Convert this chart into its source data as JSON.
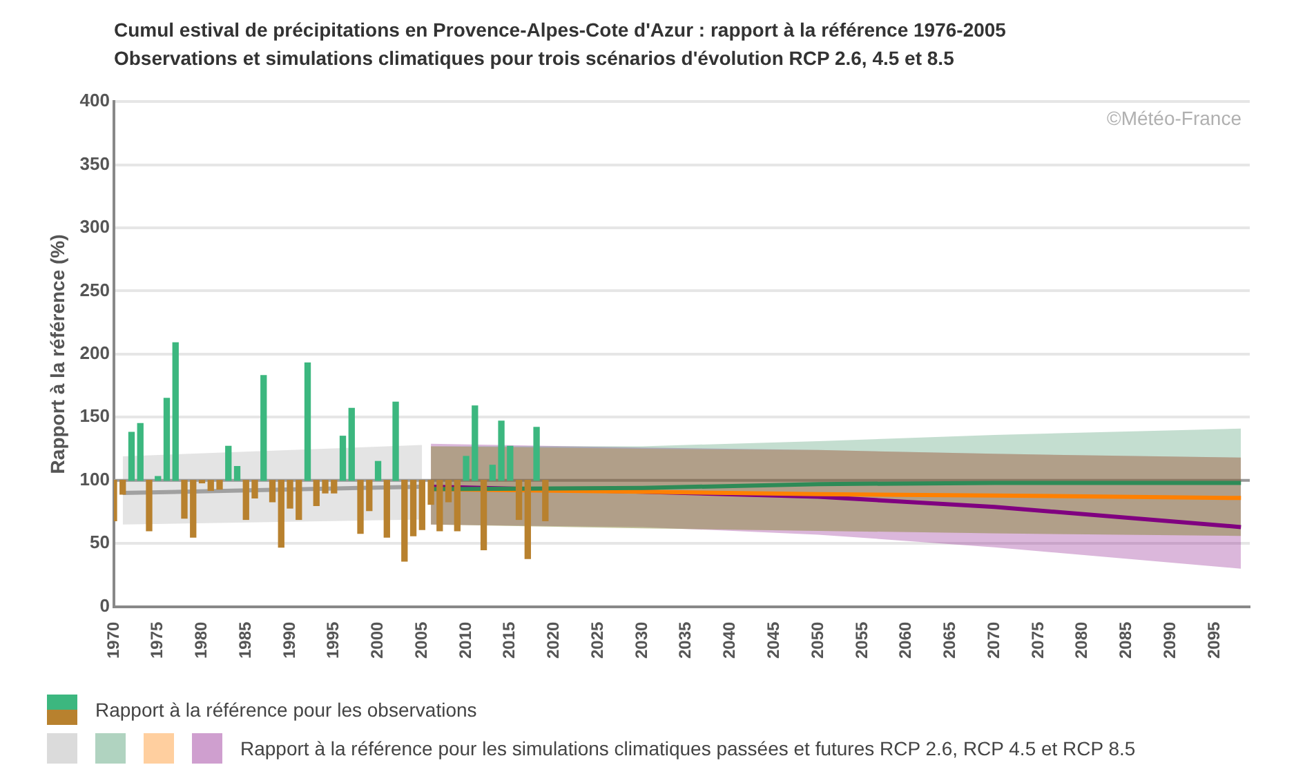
{
  "chart_data": {
    "type": "bar",
    "title": "Cumul estival de précipitations en Provence-Alpes-Cote d'Azur : rapport à la référence 1976-2005",
    "subtitle": "Observations et simulations climatiques pour trois scénarios d'évolution RCP 2.6, 4.5 et 8.5",
    "ylabel": "Rapport à la référence (%)",
    "annotations": [
      "©Météo-France",
      "Rapport à la référence  pour les simulations  climatiques passées et futures RCP 2.6, RCP 4.5 et RCP 8.5"
    ],
    "series": [
      {
        "name": "Rapport à la référence pour les observations",
        "x": [
          1970,
          1971,
          1972,
          1973,
          1974,
          1975,
          1976,
          1977,
          1978,
          1979,
          1980,
          1981,
          1982,
          1983,
          1984,
          1985,
          1986,
          1987,
          1988,
          1989,
          1990,
          1991,
          1992,
          1993,
          1994,
          1995,
          1996,
          1997,
          1998,
          1999,
          2000,
          2001,
          2002,
          2003,
          2004,
          2005,
          2006,
          2007,
          2008,
          2009,
          2010,
          2011,
          2012,
          2013,
          2014,
          2015,
          2016,
          2017,
          2018,
          2019
        ],
        "base": [
          100,
          100,
          100,
          100,
          100,
          100,
          100,
          100,
          100,
          100,
          100,
          100,
          100,
          100,
          100,
          100,
          100,
          100,
          100,
          100,
          100,
          100,
          100,
          100,
          100,
          100,
          100,
          100,
          100,
          100,
          100,
          100,
          100,
          100,
          100,
          100,
          100,
          100,
          100,
          100,
          100,
          100,
          100,
          100,
          100,
          100,
          100,
          100,
          100,
          100
        ],
        "values": [
          -32,
          -11,
          38,
          45,
          -40,
          3,
          65,
          109,
          -30,
          -45,
          -2,
          -8,
          -7,
          27,
          11,
          -31,
          -14,
          83,
          -17,
          -53,
          -22,
          -31,
          93,
          -20,
          -10,
          -10,
          35,
          57,
          -42,
          -24,
          15,
          -45,
          62,
          -64,
          -44,
          -39,
          -19,
          -40,
          -17,
          -40,
          19,
          59,
          -55,
          12,
          47,
          27,
          -31,
          -62,
          42,
          -32
        ],
        "colors": [
          "#b8812e",
          "#b8812e",
          "#3cb77f",
          "#3cb77f",
          "#b8812e",
          "#3cb77f",
          "#3cb77f",
          "#3cb77f",
          "#b8812e",
          "#b8812e",
          "#b8812e",
          "#b8812e",
          "#b8812e",
          "#3cb77f",
          "#3cb77f",
          "#b8812e",
          "#b8812e",
          "#3cb77f",
          "#b8812e",
          "#b8812e",
          "#b8812e",
          "#b8812e",
          "#3cb77f",
          "#b8812e",
          "#b8812e",
          "#b8812e",
          "#3cb77f",
          "#3cb77f",
          "#b8812e",
          "#b8812e",
          "#3cb77f",
          "#b8812e",
          "#3cb77f",
          "#b8812e",
          "#b8812e",
          "#b8812e",
          "#b8812e",
          "#b8812e",
          "#b8812e",
          "#b8812e",
          "#3cb77f",
          "#3cb77f",
          "#b8812e",
          "#3cb77f",
          "#3cb77f",
          "#3cb77f",
          "#b8812e",
          "#b8812e",
          "#3cb77f",
          "#b8812e"
        ]
      },
      {
        "type": "line",
        "color": "#a0a0a0",
        "x": [
          1971,
          2005
        ],
        "values": [
          90,
          95
        ],
        "lower": [
          65,
          69
        ],
        "upper": [
          119,
          128
        ]
      },
      {
        "type": "line",
        "color": "#2e8b57",
        "x": [
          2006,
          2030,
          2050,
          2070,
          2098
        ],
        "values": [
          93,
          94,
          97,
          98,
          98
        ],
        "lower": [
          65,
          62,
          60,
          58,
          56
        ],
        "upper": [
          127,
          127,
          131,
          136,
          141
        ]
      },
      {
        "type": "line",
        "color": "#ff8000",
        "x": [
          2006,
          2030,
          2050,
          2070,
          2098
        ],
        "values": [
          93,
          91,
          89,
          88,
          86
        ],
        "lower": [
          65,
          62,
          60,
          58,
          56
        ],
        "upper": [
          127,
          125,
          124,
          121,
          118
        ]
      },
      {
        "type": "line",
        "color": "#800080",
        "x": [
          2006,
          2030,
          2050,
          2070,
          2098
        ],
        "values": [
          95,
          91,
          87,
          79,
          63
        ],
        "lower": [
          65,
          63,
          57,
          47,
          30
        ],
        "upper": [
          129,
          126,
          124,
          121,
          118
        ]
      }
    ],
    "ref_lines": [
      {
        "axis": "y",
        "value": 100,
        "color": "#999999"
      }
    ],
    "xlim": [
      1970,
      2099
    ],
    "xticks": [
      1970,
      1975,
      1980,
      1985,
      1990,
      1995,
      2000,
      2005,
      2010,
      2015,
      2020,
      2025,
      2030,
      2035,
      2040,
      2045,
      2050,
      2055,
      2060,
      2065,
      2070,
      2075,
      2080,
      2085,
      2090,
      2095
    ],
    "ylim": [
      0,
      400
    ],
    "yticks": [
      0,
      50,
      100,
      150,
      200,
      250,
      300,
      350,
      400
    ],
    "grid": "y",
    "legend": "bottom",
    "marker": "none",
    "line_style": "solid"
  }
}
